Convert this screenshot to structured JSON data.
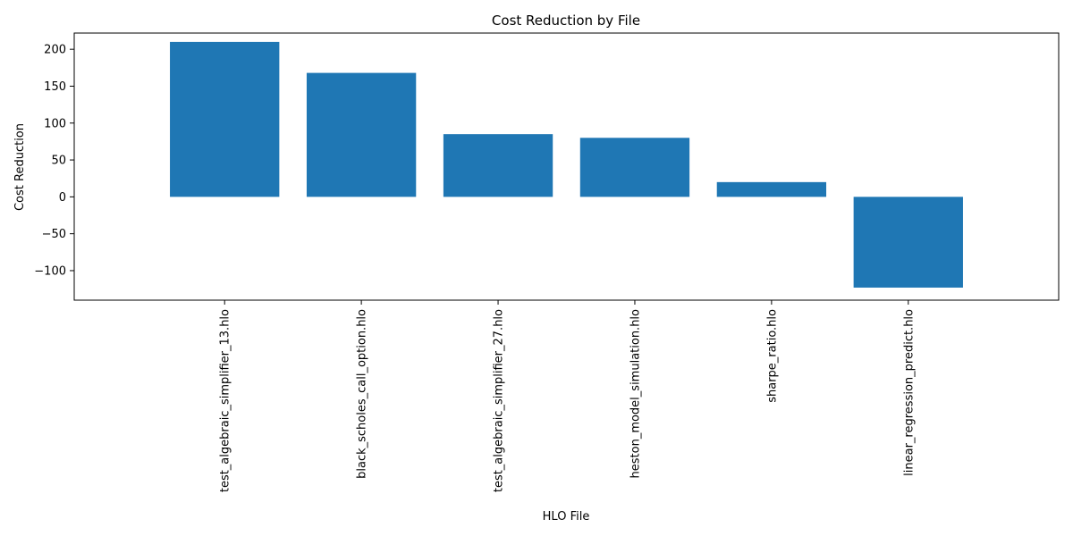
{
  "chart_data": {
    "type": "bar",
    "title": "Cost Reduction by File",
    "xlabel": "HLO File",
    "ylabel": "Cost Reduction",
    "categories": [
      "test_algebraic_simplifier_13.hlo",
      "black_scholes_call_option.hlo",
      "test_algebraic_simplifier_27.hlo",
      "heston_model_simulation.hlo",
      "sharpe_ratio.hlo",
      "linear_regression_predict.hlo"
    ],
    "values": [
      210,
      168,
      85,
      80,
      20,
      -123
    ],
    "ylim": [
      -140,
      222
    ],
    "yticks": [
      -100,
      -50,
      0,
      50,
      100,
      150,
      200
    ],
    "ytick_labels": [
      "−100",
      "−50",
      "0",
      "50",
      "100",
      "150",
      "200"
    ],
    "bar_color": "#1f77b4",
    "grid": false,
    "legend": "none",
    "x_tick_rotation": "vertical"
  }
}
